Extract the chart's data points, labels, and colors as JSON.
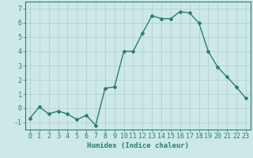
{
  "x": [
    0,
    1,
    2,
    3,
    4,
    5,
    6,
    7,
    8,
    9,
    10,
    11,
    12,
    13,
    14,
    15,
    16,
    17,
    18,
    19,
    20,
    21,
    22,
    23
  ],
  "y": [
    -0.7,
    0.1,
    -0.4,
    -0.2,
    -0.4,
    -0.8,
    -0.5,
    -1.2,
    1.4,
    1.5,
    4.0,
    4.0,
    5.3,
    6.5,
    6.3,
    6.3,
    6.8,
    6.7,
    6.0,
    4.0,
    2.9,
    2.2,
    1.5,
    0.7
  ],
  "line_color": "#2e7d6e",
  "marker": "D",
  "marker_size": 2,
  "linewidth": 1.0,
  "background_color": "#cce8e8",
  "grid_color": "#b0cccc",
  "xlabel": "Humidex (Indice chaleur)",
  "ylim": [
    -1.5,
    7.5
  ],
  "xlim": [
    -0.5,
    23.5
  ],
  "yticks": [
    -1,
    0,
    1,
    2,
    3,
    4,
    5,
    6,
    7
  ],
  "xticks": [
    0,
    1,
    2,
    3,
    4,
    5,
    6,
    7,
    8,
    9,
    10,
    11,
    12,
    13,
    14,
    15,
    16,
    17,
    18,
    19,
    20,
    21,
    22,
    23
  ],
  "tick_color": "#2e7d6e",
  "label_fontsize": 6.5,
  "tick_fontsize": 6,
  "spine_color": "#2e7d6e"
}
